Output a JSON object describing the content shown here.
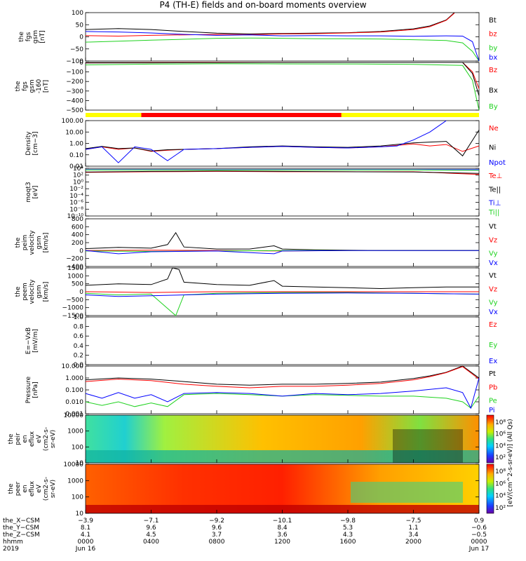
{
  "title": "P4 (TH-E) fields and on-board moments overview",
  "colors": {
    "black": "#000000",
    "red": "#ff0000",
    "green": "#1fd21f",
    "blue": "#0000ff",
    "yellow": "#ffff00",
    "navy": "#0000ff"
  },
  "chart_data": [
    {
      "type": "line",
      "panel": "the_fgs_gsm",
      "ylabel": [
        "the",
        "fgs",
        "gsm",
        "[nT]"
      ],
      "yticks": [
        "100",
        "50",
        "0",
        "−50",
        "−100"
      ],
      "ylim": [
        -100,
        100
      ],
      "series": [
        {
          "name": "Bt",
          "color": "#000000",
          "x": [
            0,
            2,
            4,
            6,
            8,
            10,
            12,
            14,
            16,
            18,
            20,
            21,
            22,
            22.5
          ],
          "values": [
            30,
            34,
            30,
            22,
            15,
            12,
            14,
            15,
            17,
            22,
            33,
            45,
            70,
            100
          ]
        },
        {
          "name": "bz",
          "color": "#ff0000",
          "x": [
            0,
            2,
            4,
            6,
            8,
            10,
            12,
            14,
            16,
            18,
            20,
            21,
            22,
            22.5
          ],
          "values": [
            5,
            3,
            6,
            8,
            10,
            9,
            12,
            13,
            16,
            20,
            30,
            42,
            68,
            98
          ]
        },
        {
          "name": "by",
          "color": "#1fd21f",
          "x": [
            0,
            2,
            4,
            6,
            8,
            10,
            12,
            14,
            16,
            18,
            20,
            22,
            23,
            23.6,
            24
          ],
          "values": [
            -22,
            -18,
            -14,
            -10,
            -6,
            -5,
            -6,
            -8,
            -8,
            -9,
            -12,
            -15,
            -25,
            -60,
            -100
          ]
        },
        {
          "name": "bx",
          "color": "#0000ff",
          "x": [
            0,
            2,
            4,
            6,
            8,
            10,
            12,
            14,
            16,
            18,
            20,
            22,
            23,
            23.6,
            24
          ],
          "values": [
            22,
            20,
            16,
            10,
            6,
            8,
            4,
            5,
            4,
            4,
            2,
            4,
            3,
            -20,
            -100
          ]
        }
      ]
    },
    {
      "type": "line",
      "panel": "the_fgs_gsm_zoom",
      "ylabel": [
        "the",
        "fgs",
        "gsm",
        "-160",
        "[nT]"
      ],
      "yticks": [
        "0",
        "−100",
        "−200",
        "−300",
        "−400",
        "−500"
      ],
      "ylim": [
        -550,
        10
      ],
      "series": [
        {
          "name": "Bz",
          "color": "#ff0000",
          "x": [
            0,
            4,
            8,
            12,
            16,
            20,
            23,
            23.6,
            24
          ],
          "values": [
            5,
            8,
            10,
            12,
            16,
            30,
            20,
            -100,
            -300
          ]
        },
        {
          "name": "Bx",
          "color": "#000000",
          "x": [
            0,
            4,
            8,
            12,
            16,
            20,
            23,
            23.6,
            24
          ],
          "values": [
            3,
            5,
            7,
            9,
            12,
            22,
            18,
            -120,
            -380
          ]
        },
        {
          "name": "By",
          "color": "#1fd21f",
          "x": [
            0,
            4,
            8,
            12,
            16,
            20,
            23,
            23.6,
            24
          ],
          "values": [
            -20,
            -10,
            -6,
            -7,
            -8,
            -12,
            -25,
            -200,
            -550
          ]
        }
      ]
    },
    {
      "type": "line",
      "panel": "density",
      "ylabel": [
        "Density",
        "[cm−3]"
      ],
      "yticks": [
        "100.00",
        "10.00",
        "1.00",
        "0.10",
        "0.01"
      ],
      "yscale": "log",
      "ylim": [
        0.01,
        100
      ],
      "series": [
        {
          "name": "Ne",
          "color": "#ff0000",
          "x": [
            0,
            1,
            2,
            3,
            4,
            5,
            6,
            8,
            10,
            12,
            14,
            16,
            18,
            20,
            21,
            22,
            23,
            24
          ],
          "values": [
            0.3,
            0.5,
            0.3,
            0.4,
            0.2,
            0.25,
            0.3,
            0.35,
            0.45,
            0.55,
            0.45,
            0.4,
            0.5,
            0.9,
            0.6,
            0.8,
            0.2,
            0.6
          ]
        },
        {
          "name": "Ni",
          "color": "#000000",
          "x": [
            0,
            1,
            2,
            3,
            4,
            5,
            6,
            8,
            10,
            12,
            14,
            16,
            18,
            20,
            21,
            22,
            23,
            24
          ],
          "values": [
            0.35,
            0.55,
            0.35,
            0.4,
            0.22,
            0.28,
            0.3,
            0.35,
            0.5,
            0.6,
            0.5,
            0.45,
            0.6,
            1.1,
            1.3,
            1.5,
            0.08,
            15
          ]
        },
        {
          "name": "Npot",
          "color": "#0000ff",
          "x": [
            0,
            1,
            2,
            3,
            4,
            5,
            6,
            8,
            10,
            12,
            14,
            16,
            18,
            19,
            20,
            21,
            22
          ],
          "values": [
            0.3,
            0.5,
            0.02,
            0.5,
            0.3,
            0.03,
            0.3,
            0.35,
            0.45,
            0.55,
            0.45,
            0.4,
            0.5,
            0.6,
            2,
            10,
            100
          ]
        }
      ]
    },
    {
      "type": "line",
      "panel": "moqt3",
      "ylabel": [
        "moqt3",
        "[eV]"
      ],
      "yticks": [
        "10⁴",
        "10²",
        "10⁰",
        "10⁻²",
        "10⁻⁴",
        "10⁻⁶",
        "10⁻⁸",
        "10⁻¹⁰"
      ],
      "yscale": "log",
      "ylim": [
        -10,
        4
      ],
      "series": [
        {
          "name": "Te⊥",
          "color": "#ff0000",
          "x": [
            0,
            4,
            8,
            12,
            16,
            20,
            24
          ],
          "values": [
            2.8,
            3.0,
            3.1,
            3.0,
            3.0,
            3.0,
            2.2
          ]
        },
        {
          "name": "Te||",
          "color": "#000000",
          "x": [
            0,
            4,
            8,
            12,
            16,
            20,
            24
          ],
          "values": [
            2.9,
            3.1,
            3.2,
            3.1,
            3.0,
            2.9,
            2.5
          ]
        },
        {
          "name": "Ti⊥",
          "color": "#0000ff",
          "x": [
            0,
            4,
            8,
            12,
            16,
            20,
            24
          ],
          "values": [
            3.6,
            3.6,
            3.6,
            3.6,
            3.6,
            3.6,
            3.6
          ]
        },
        {
          "name": "Ti||",
          "color": "#1fd21f",
          "x": [
            0,
            4,
            8,
            12,
            16,
            20,
            24
          ],
          "values": [
            3.5,
            3.5,
            3.5,
            3.5,
            3.5,
            3.5,
            3.4
          ]
        }
      ]
    },
    {
      "type": "line",
      "panel": "the_peim_velocity_gsm",
      "ylabel": [
        "the",
        "peim",
        "velocity",
        "gsm",
        "[km/s]"
      ],
      "yticks": [
        "800",
        "600",
        "400",
        "200",
        "0",
        "−200",
        "−400"
      ],
      "ylim": [
        -400,
        800
      ],
      "series": [
        {
          "name": "Vt",
          "color": "#000000",
          "x": [
            0,
            2,
            4,
            5,
            5.5,
            6,
            8,
            10,
            11.5,
            12,
            14,
            16,
            18,
            20,
            24
          ],
          "values": [
            50,
            80,
            60,
            150,
            450,
            90,
            40,
            40,
            120,
            40,
            20,
            10,
            5,
            5,
            5
          ]
        },
        {
          "name": "Vz",
          "color": "#ff0000",
          "x": [
            0,
            4,
            8,
            12,
            16,
            20,
            24
          ],
          "values": [
            0,
            10,
            0,
            -10,
            0,
            0,
            0
          ]
        },
        {
          "name": "Vy",
          "color": "#1fd21f",
          "x": [
            0,
            4,
            8,
            12,
            16,
            20,
            24
          ],
          "values": [
            -10,
            -20,
            -10,
            0,
            0,
            0,
            0
          ]
        },
        {
          "name": "Vx",
          "color": "#0000ff",
          "x": [
            0,
            2,
            4,
            8,
            11.5,
            12,
            16,
            24
          ],
          "values": [
            0,
            -80,
            -30,
            -10,
            -80,
            -10,
            0,
            0
          ]
        }
      ]
    },
    {
      "type": "line",
      "panel": "the_peem_velocity_gsm",
      "ylabel": [
        "the",
        "peem",
        "velocity",
        "gsm",
        "[km/s]"
      ],
      "yticks": [
        "1500",
        "1000",
        "500",
        "0",
        "−500",
        "−1000",
        "−1500"
      ],
      "ylim": [
        -1500,
        1500
      ],
      "series": [
        {
          "name": "Vt",
          "color": "#000000",
          "x": [
            0,
            2,
            4,
            5,
            5.3,
            5.7,
            6,
            8,
            10,
            11.5,
            12,
            14,
            16,
            18,
            20,
            22,
            24
          ],
          "values": [
            400,
            500,
            450,
            800,
            1500,
            1400,
            600,
            450,
            400,
            700,
            350,
            300,
            250,
            200,
            250,
            300,
            300
          ]
        },
        {
          "name": "Vz",
          "color": "#ff0000",
          "x": [
            0,
            4,
            8,
            12,
            16,
            20,
            24
          ],
          "values": [
            0,
            -50,
            0,
            0,
            0,
            0,
            0
          ]
        },
        {
          "name": "Vy",
          "color": "#1fd21f",
          "x": [
            0,
            2,
            4,
            5.5,
            6,
            8,
            12,
            16,
            20,
            24
          ],
          "values": [
            -100,
            -200,
            -150,
            -1500,
            -200,
            -100,
            -50,
            -50,
            -100,
            -150
          ]
        },
        {
          "name": "Vx",
          "color": "#0000ff",
          "x": [
            0,
            2,
            4,
            8,
            12,
            16,
            20,
            24
          ],
          "values": [
            -200,
            -300,
            -250,
            -150,
            -100,
            -80,
            -100,
            -150
          ]
        }
      ]
    },
    {
      "type": "line",
      "panel": "E_VxB",
      "ylabel": [
        "E=−VxB",
        "[mV/m]"
      ],
      "yticks": [
        "1.0",
        "0.8",
        "0.6",
        "0.4",
        "0.2",
        "0.0"
      ],
      "ylim": [
        0,
        1
      ],
      "series": [
        {
          "name": "Ez",
          "color": "#ff0000",
          "x": [],
          "values": []
        },
        {
          "name": "Ey",
          "color": "#1fd21f",
          "x": [],
          "values": []
        },
        {
          "name": "Ex",
          "color": "#0000ff",
          "x": [],
          "values": []
        }
      ]
    },
    {
      "type": "line",
      "panel": "pressure",
      "ylabel": [
        "Pressure",
        "[nPa]"
      ],
      "yticks": [
        "10.000",
        "1.000",
        "0.100",
        "0.010",
        "0.001"
      ],
      "yscale": "log",
      "ylim": [
        0.001,
        10
      ],
      "series": [
        {
          "name": "Pt",
          "color": "#000000",
          "x": [
            0,
            2,
            4,
            6,
            8,
            10,
            12,
            14,
            16,
            18,
            20,
            21,
            22,
            23,
            24
          ],
          "values": [
            0.7,
            1.0,
            0.8,
            0.5,
            0.3,
            0.25,
            0.3,
            0.3,
            0.35,
            0.45,
            0.9,
            1.5,
            3,
            10,
            1.0
          ]
        },
        {
          "name": "Pb",
          "color": "#ff0000",
          "x": [
            0,
            2,
            4,
            6,
            8,
            10,
            12,
            14,
            16,
            18,
            20,
            21,
            22,
            23,
            24
          ],
          "values": [
            0.5,
            0.8,
            0.6,
            0.3,
            0.2,
            0.15,
            0.2,
            0.2,
            0.25,
            0.35,
            0.7,
            1.3,
            2.8,
            9,
            0.8
          ]
        },
        {
          "name": "Pe",
          "color": "#1fd21f",
          "x": [
            0,
            1,
            2,
            3,
            4,
            5,
            6,
            8,
            10,
            12,
            14,
            16,
            18,
            20,
            22,
            23,
            23.5,
            24
          ],
          "values": [
            0.01,
            0.005,
            0.01,
            0.004,
            0.008,
            0.004,
            0.04,
            0.05,
            0.04,
            0.03,
            0.04,
            0.035,
            0.03,
            0.03,
            0.02,
            0.01,
            0.003,
            0.03
          ]
        },
        {
          "name": "Pi",
          "color": "#0000ff",
          "x": [
            0,
            1,
            2,
            3,
            4,
            5,
            6,
            8,
            10,
            12,
            14,
            16,
            18,
            20,
            22,
            23,
            23.5,
            24
          ],
          "values": [
            0.05,
            0.02,
            0.06,
            0.02,
            0.04,
            0.01,
            0.05,
            0.06,
            0.05,
            0.03,
            0.05,
            0.04,
            0.05,
            0.08,
            0.15,
            0.06,
            0.003,
            1.0
          ]
        }
      ]
    },
    {
      "type": "heatmap",
      "panel": "the_peir_en_eflux",
      "ylabel": [
        "the",
        "peir",
        "en",
        "eflux",
        "eV",
        "(cm2-s-",
        "sr-eV)"
      ],
      "yticks": [
        "10000",
        "1000",
        "100",
        "10"
      ],
      "yscale": "log",
      "ylim": [
        5,
        30000
      ],
      "colorbar_ticks": [
        "10⁸",
        "10⁶",
        "10⁴",
        "10²"
      ]
    },
    {
      "type": "heatmap",
      "panel": "the_peer_en_eflux",
      "ylabel": [
        "the",
        "peer",
        "en",
        "eflux",
        "eV",
        "(cm2-s-",
        "sr-eV)"
      ],
      "yticks": [
        "10000",
        "1000",
        "100",
        "10"
      ],
      "yscale": "log",
      "ylim": [
        5,
        30000
      ],
      "colorbar_ticks": [
        "10⁸",
        "10⁶",
        "10⁴",
        "10²"
      ]
    }
  ],
  "colorbar_label": "[eV/(cm^2-s-sr-eV)] (All Qs)",
  "colorbar_label_2": "[eV/(cm^2-s-sr-eV)] (All Qs)",
  "ephemeris": {
    "row_labels": [
      "the_X−CSM",
      "the_Y−CSM",
      "the_Z−CSM",
      "hhmm",
      "2019"
    ],
    "columns": [
      {
        "x": "−3.9",
        "y": "8.1",
        "z": "4.1",
        "hhmm": "0000",
        "date": "Jun 16"
      },
      {
        "x": "−7.1",
        "y": "9.6",
        "z": "4.5",
        "hhmm": "0400",
        "date": ""
      },
      {
        "x": "−9.2",
        "y": "9.6",
        "z": "3.7",
        "hhmm": "0800",
        "date": ""
      },
      {
        "x": "−10.1",
        "y": "8.4",
        "z": "3.6",
        "hhmm": "1200",
        "date": ""
      },
      {
        "x": "−9.8",
        "y": "5.3",
        "z": "4.3",
        "hhmm": "1600",
        "date": ""
      },
      {
        "x": "−7.5",
        "y": "1.1",
        "z": "3.4",
        "hhmm": "2000",
        "date": ""
      },
      {
        "x": "0.9",
        "y": "−0.6",
        "z": "−0.5",
        "hhmm": "0000",
        "date": "Jun 17"
      }
    ]
  }
}
